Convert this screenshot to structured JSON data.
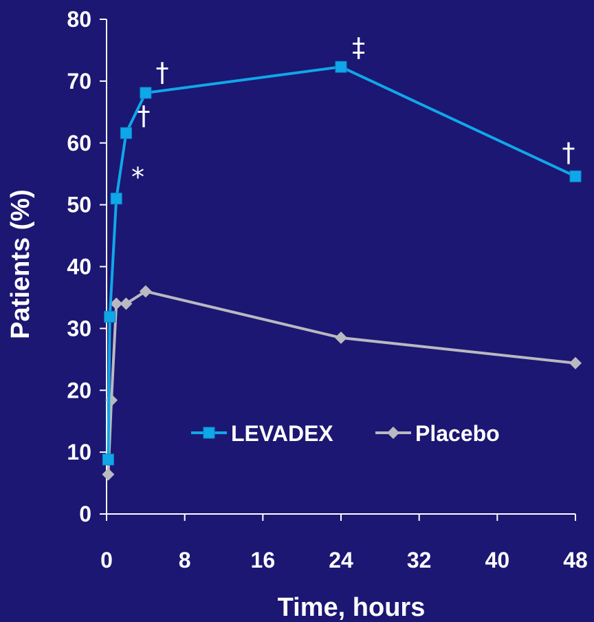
{
  "chart_data": {
    "type": "line",
    "title": "",
    "xlabel": "Time, hours",
    "ylabel": "Patients (%)",
    "xlim": [
      0,
      48
    ],
    "ylim": [
      0,
      80
    ],
    "x_ticks": [
      0,
      8,
      16,
      24,
      32,
      40,
      48
    ],
    "y_ticks": [
      0,
      10,
      20,
      30,
      40,
      50,
      60,
      70,
      80
    ],
    "grid": false,
    "legend_position": "bottom-center",
    "series": [
      {
        "name": "LEVADEX",
        "color": "#10a7e9",
        "marker": "square",
        "x": [
          0.17,
          0.33,
          1,
          2,
          4,
          24,
          48
        ],
        "y": [
          8.8,
          31.9,
          51,
          61.6,
          68.1,
          72.3,
          54.6
        ]
      },
      {
        "name": "Placebo",
        "color": "#b9b9c1",
        "marker": "diamond",
        "x": [
          0.17,
          0.5,
          1,
          2,
          4,
          24,
          48
        ],
        "y": [
          6.4,
          18.4,
          34,
          34,
          36,
          28.5,
          24.4
        ]
      }
    ],
    "annotations": [
      {
        "text": "*",
        "x": 3.2,
        "y": 53
      },
      {
        "text": "†",
        "x": 3.8,
        "y": 63
      },
      {
        "text": "†",
        "x": 5.7,
        "y": 70
      },
      {
        "text": "‡",
        "x": 25.8,
        "y": 74
      },
      {
        "text": "†",
        "x": 47.3,
        "y": 57
      }
    ]
  }
}
